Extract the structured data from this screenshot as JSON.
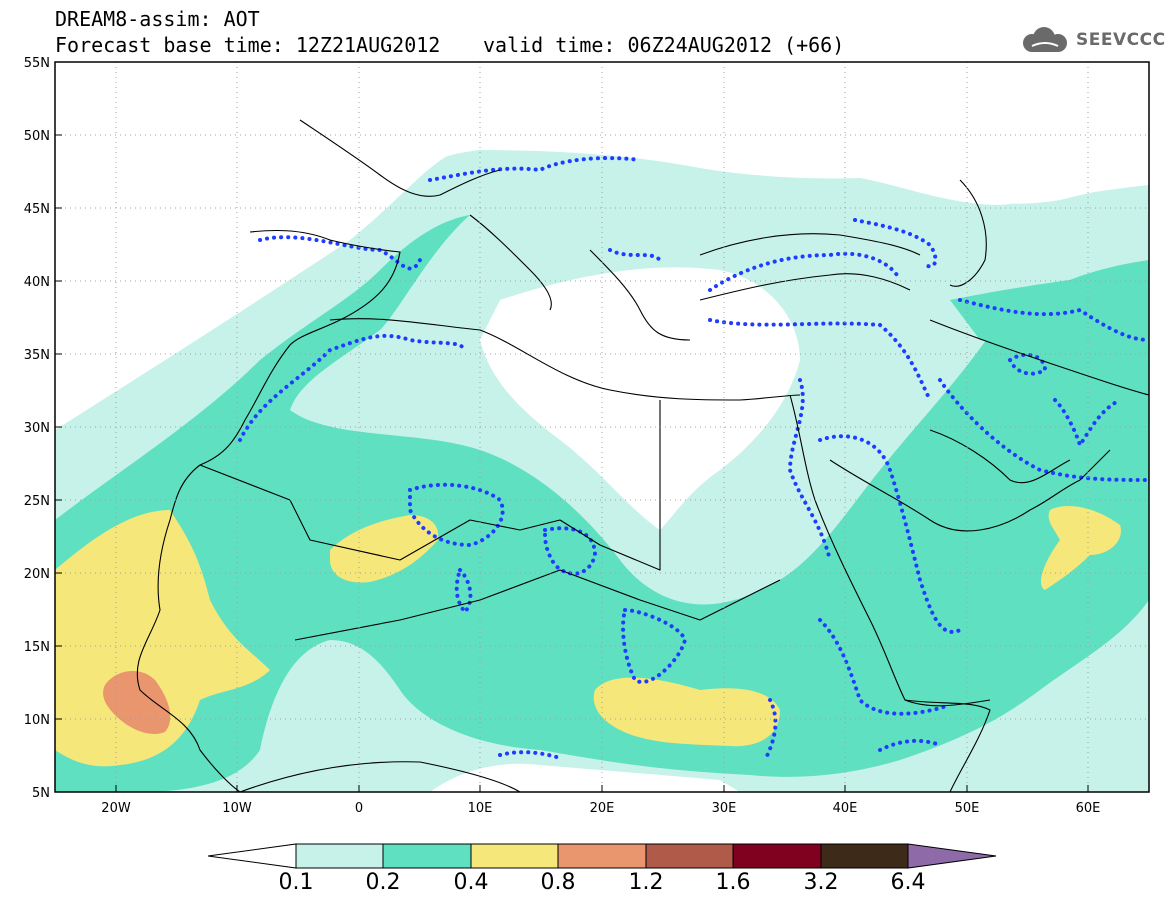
{
  "header": {
    "title_line1": "DREAM8-assim: AOT",
    "title_line2": "Forecast base time: 12Z21AUG2012",
    "valid_time": "valid time: 06Z24AUG2012 (+66)",
    "logo_text": "SEEVCCC"
  },
  "map": {
    "projection": "lat-lon",
    "lon_range": [
      -25,
      65
    ],
    "lat_range": [
      5,
      55
    ],
    "lat_ticks": [
      "55N",
      "50N",
      "45N",
      "40N",
      "35N",
      "30N",
      "25N",
      "20N",
      "15N",
      "10N",
      "5N"
    ],
    "lon_ticks": [
      "20W",
      "10W",
      "0",
      "10E",
      "20E",
      "30E",
      "40E",
      "50E",
      "60E"
    ],
    "gridlines": "dotted"
  },
  "colorbar": {
    "labels": [
      "0.1",
      "0.2",
      "0.4",
      "0.8",
      "1.2",
      "1.6",
      "3.2",
      "6.4"
    ],
    "colors": [
      "#c6f2ea",
      "#5fe0c0",
      "#f5e77a",
      "#e9956e",
      "#b05a4a",
      "#800020",
      "#3d2a18",
      "#8e6aa8"
    ],
    "below_color": "#ffffff"
  },
  "overlays": {
    "contour_color": "#1f3cff",
    "contour_style": "dotted",
    "coastline_color": "#000000"
  }
}
